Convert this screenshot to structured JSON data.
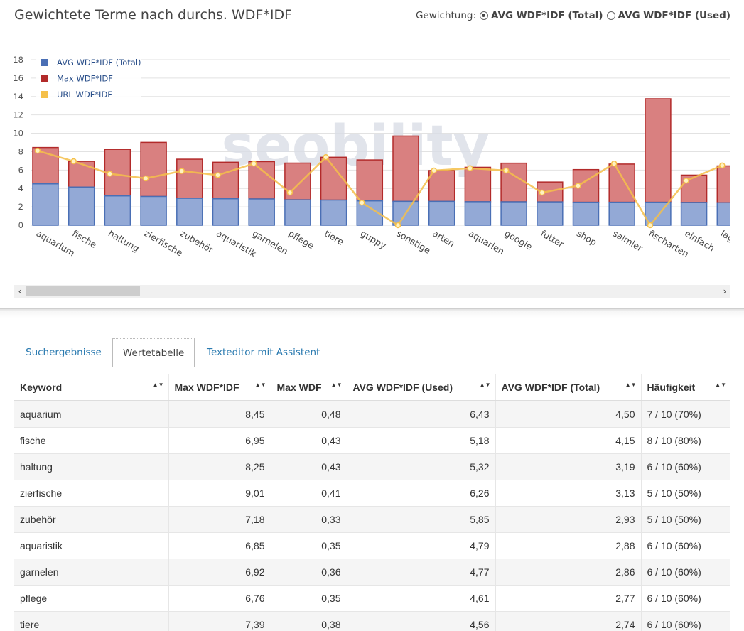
{
  "header": {
    "title": "Gewichtete Terme nach durchs. WDF*IDF",
    "weighting_label": "Gewichtung:",
    "options": [
      {
        "label": "AVG WDF*IDF (Total)",
        "checked": true
      },
      {
        "label": "AVG WDF*IDF (Used)",
        "checked": false
      }
    ]
  },
  "chart_data": {
    "type": "bar",
    "stacked": true,
    "watermark": "seobility",
    "categories": [
      "aquarium",
      "fische",
      "haltung",
      "zierfische",
      "zubehör",
      "aquaristik",
      "garnelen",
      "pflege",
      "tiere",
      "guppy",
      "sonstige",
      "arten",
      "aquarien",
      "google",
      "futter",
      "shop",
      "salmler",
      "fischarten",
      "einfach",
      "lage"
    ],
    "ylim": [
      0,
      18
    ],
    "yticks": [
      0,
      2,
      4,
      6,
      8,
      10,
      12,
      14,
      16,
      18
    ],
    "grid": true,
    "legend_position": "top-left",
    "series": [
      {
        "name": "AVG WDF*IDF (Total)",
        "type": "bar",
        "color": "#4a6fb5",
        "fill": "#93a9d6",
        "values": [
          4.5,
          4.15,
          3.19,
          3.13,
          2.93,
          2.88,
          2.86,
          2.77,
          2.74,
          2.65,
          2.6,
          2.6,
          2.56,
          2.55,
          2.54,
          2.5,
          2.5,
          2.5,
          2.48,
          2.45
        ]
      },
      {
        "name": "Max WDF*IDF",
        "type": "bar",
        "color": "#b22a2a",
        "fill": "#d98080",
        "values": [
          8.45,
          6.95,
          8.25,
          9.01,
          7.18,
          6.85,
          6.92,
          6.76,
          7.39,
          7.1,
          9.7,
          5.95,
          6.3,
          6.75,
          4.7,
          6.05,
          6.65,
          13.75,
          5.45,
          6.45
        ]
      },
      {
        "name": "URL WDF*IDF",
        "type": "line",
        "color": "#f5c04a",
        "fill": "#fdd88a",
        "values": [
          8.1,
          6.95,
          5.6,
          5.1,
          5.9,
          5.45,
          6.7,
          3.55,
          7.4,
          2.45,
          0.0,
          5.95,
          6.2,
          5.95,
          3.55,
          4.3,
          6.7,
          0.0,
          4.85,
          6.5
        ]
      }
    ]
  },
  "scrollbar": {
    "left_arrow": "‹",
    "right_arrow": "›"
  },
  "tabs": [
    {
      "label": "Suchergebnisse",
      "active": false
    },
    {
      "label": "Wertetabelle",
      "active": true
    },
    {
      "label": "Texteditor mit Assistent",
      "active": false
    }
  ],
  "table": {
    "columns": [
      "Keyword",
      "Max WDF*IDF",
      "Max WDF",
      "AVG WDF*IDF (Used)",
      "AVG WDF*IDF (Total)",
      "Häufigkeit"
    ],
    "rows": [
      [
        "aquarium",
        "8,45",
        "0,48",
        "6,43",
        "4,50",
        "7 / 10 (70%)"
      ],
      [
        "fische",
        "6,95",
        "0,43",
        "5,18",
        "4,15",
        "8 / 10 (80%)"
      ],
      [
        "haltung",
        "8,25",
        "0,43",
        "5,32",
        "3,19",
        "6 / 10 (60%)"
      ],
      [
        "zierfische",
        "9,01",
        "0,41",
        "6,26",
        "3,13",
        "5 / 10 (50%)"
      ],
      [
        "zubehör",
        "7,18",
        "0,33",
        "5,85",
        "2,93",
        "5 / 10 (50%)"
      ],
      [
        "aquaristik",
        "6,85",
        "0,35",
        "4,79",
        "2,88",
        "6 / 10 (60%)"
      ],
      [
        "garnelen",
        "6,92",
        "0,36",
        "4,77",
        "2,86",
        "6 / 10 (60%)"
      ],
      [
        "pflege",
        "6,76",
        "0,35",
        "4,61",
        "2,77",
        "6 / 10 (60%)"
      ],
      [
        "tiere",
        "7,39",
        "0,38",
        "4,56",
        "2,74",
        "6 / 10 (60%)"
      ]
    ]
  }
}
